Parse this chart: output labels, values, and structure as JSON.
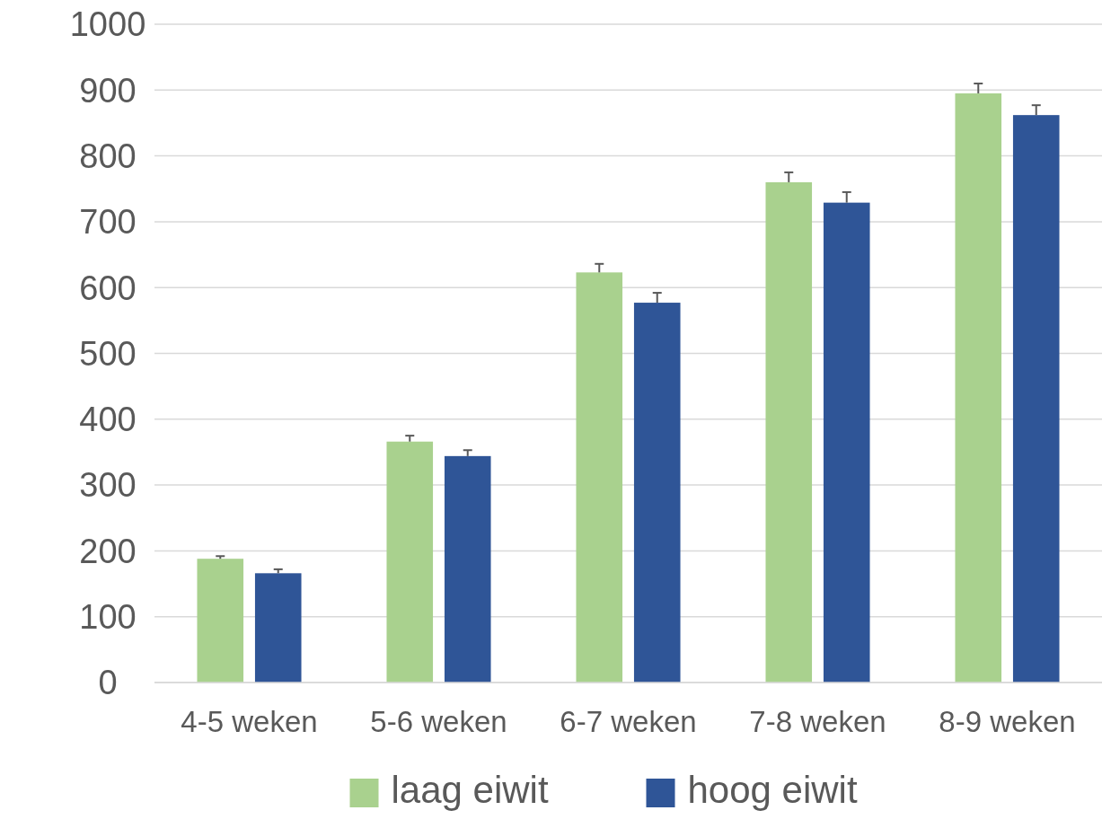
{
  "chart_data": {
    "type": "bar",
    "categories": [
      "4-5 weken",
      "5-6 weken",
      "6-7 weken",
      "7-8 weken",
      "8-9 weken"
    ],
    "series": [
      {
        "name": "laag eiwit",
        "color": "#a9d18e",
        "values": [
          188,
          366,
          623,
          760,
          895
        ],
        "errors": [
          [
            188,
            192
          ],
          [
            366,
            375
          ],
          [
            623,
            636
          ],
          [
            760,
            775
          ],
          [
            895,
            910
          ]
        ]
      },
      {
        "name": "hoog eiwit",
        "color": "#2f5597",
        "values": [
          166,
          344,
          577,
          729,
          862
        ],
        "errors": [
          [
            166,
            172
          ],
          [
            344,
            353
          ],
          [
            577,
            592
          ],
          [
            729,
            745
          ],
          [
            862,
            877
          ]
        ]
      }
    ],
    "ylim": [
      0,
      1000
    ],
    "yticks": [
      0,
      100,
      200,
      300,
      400,
      500,
      600,
      700,
      800,
      900,
      1000
    ],
    "grid": "y",
    "legend": "bottom"
  }
}
